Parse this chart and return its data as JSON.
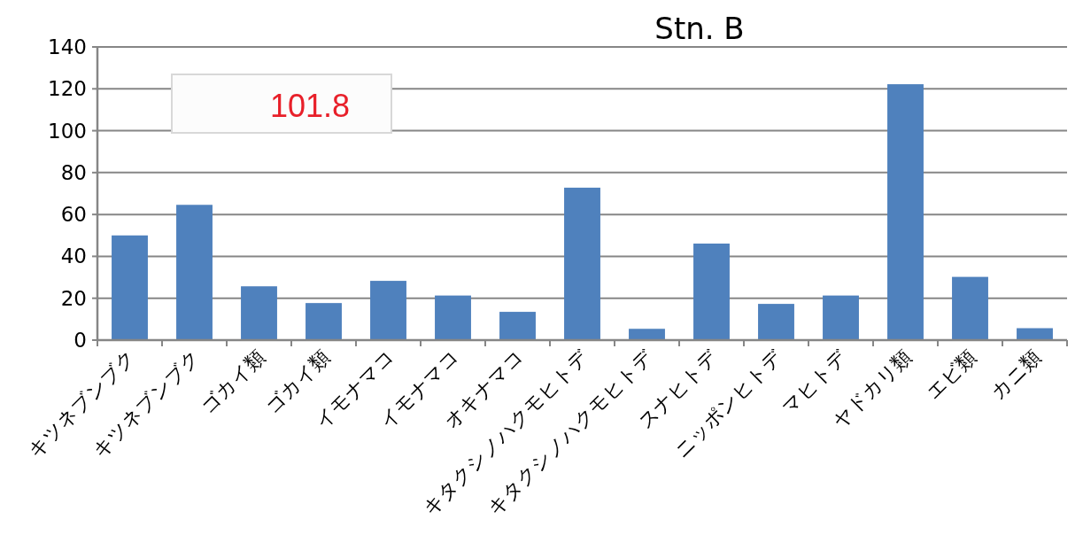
{
  "chart_data": {
    "type": "bar",
    "title": "Stn. B",
    "categories": [
      "キツネブンブク",
      "キツネブンブク",
      "ゴカイ類",
      "ゴカイ類",
      "イモナマコ",
      "イモナマコ",
      "オキナマコ",
      "キタクシノハクモヒトデ",
      "キタクシノハクモヒトデ",
      "スナヒトデ",
      "ニッポンヒトデ",
      "マヒトデ",
      "ヤドカリ類",
      "エビ類",
      "カニ類"
    ],
    "values": [
      50,
      64.6,
      25.7,
      17.7,
      28.3,
      21.3,
      13.5,
      72.8,
      5.4,
      46.1,
      17.3,
      21.3,
      122.2,
      30.2,
      5.7
    ],
    "color": "#4f81bd",
    "ylim": [
      0,
      140
    ],
    "yticks": [
      0,
      20,
      40,
      60,
      80,
      100,
      120,
      140
    ],
    "grid": "y",
    "annotations": [
      "101.8"
    ]
  }
}
